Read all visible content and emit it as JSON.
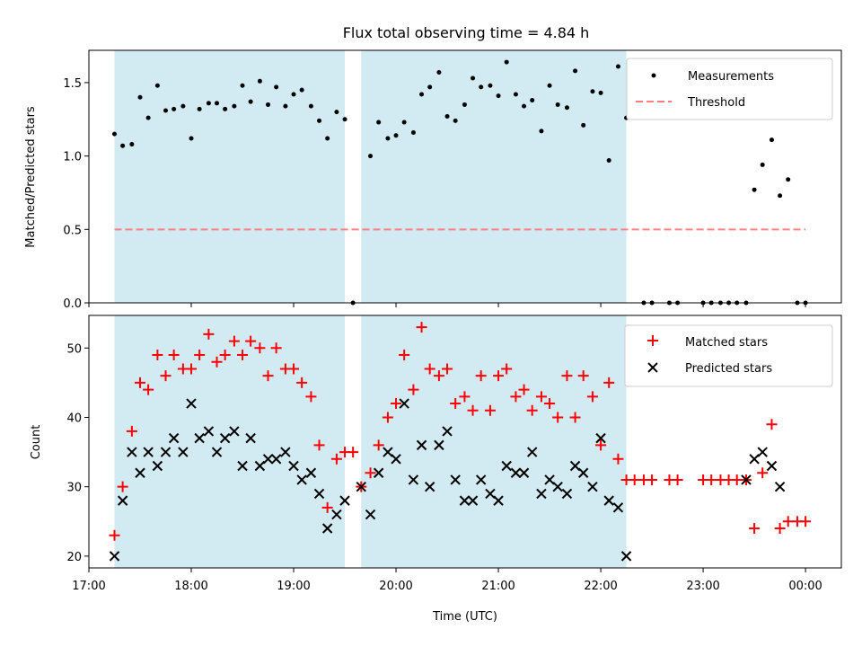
{
  "chart_data": [
    {
      "type": "scatter",
      "title": "Flux total observing time = 4.84 h",
      "xlabel": "",
      "ylabel": "Matched/Predicted stars",
      "xlim": [
        17.0,
        24.35
      ],
      "ylim": [
        0.0,
        1.72
      ],
      "yticks": [
        0.0,
        0.5,
        1.0,
        1.5
      ],
      "ytick_labels": [
        "0.0",
        "0.5",
        "1.0",
        "1.5"
      ],
      "shaded_spans": [
        [
          17.25,
          19.5
        ],
        [
          19.66,
          22.25
        ]
      ],
      "shade_color": "#add8e6",
      "series": [
        {
          "name": "Measurements",
          "marker": "dot",
          "color": "#000000",
          "x": [
            17.25,
            17.33,
            17.42,
            17.5,
            17.58,
            17.67,
            17.75,
            17.83,
            17.92,
            18.0,
            18.08,
            18.17,
            18.25,
            18.33,
            18.42,
            18.5,
            18.58,
            18.67,
            18.75,
            18.83,
            18.92,
            19.0,
            19.08,
            19.17,
            19.25,
            19.33,
            19.42,
            19.5,
            19.58,
            19.75,
            19.83,
            19.92,
            20.0,
            20.08,
            20.17,
            20.25,
            20.33,
            20.42,
            20.5,
            20.58,
            20.67,
            20.75,
            20.83,
            20.92,
            21.0,
            21.08,
            21.17,
            21.25,
            21.33,
            21.42,
            21.5,
            21.58,
            21.67,
            21.75,
            21.83,
            21.92,
            22.0,
            22.08,
            22.17,
            22.25,
            22.33,
            22.42,
            22.5,
            22.67,
            22.75,
            23.0,
            23.08,
            23.17,
            23.25,
            23.33,
            23.42,
            23.5,
            23.58,
            23.67,
            23.75,
            23.83,
            23.92,
            24.0
          ],
          "y": [
            1.15,
            1.07,
            1.08,
            1.4,
            1.26,
            1.48,
            1.31,
            1.32,
            1.34,
            1.12,
            1.32,
            1.36,
            1.36,
            1.32,
            1.34,
            1.48,
            1.37,
            1.51,
            1.35,
            1.47,
            1.34,
            1.42,
            1.45,
            1.34,
            1.24,
            1.12,
            1.3,
            1.25,
            0.0,
            1.0,
            1.23,
            1.12,
            1.14,
            1.23,
            1.16,
            1.42,
            1.47,
            1.57,
            1.27,
            1.24,
            1.35,
            1.53,
            1.47,
            1.48,
            1.41,
            1.64,
            1.42,
            1.34,
            1.38,
            1.17,
            1.48,
            1.35,
            1.33,
            1.58,
            1.21,
            1.44,
            1.43,
            0.97,
            1.61,
            1.26,
            1.55,
            0.0,
            0.0,
            0.0,
            0.0,
            0.0,
            0.0,
            0.0,
            0.0,
            0.0,
            0.0,
            0.77,
            0.94,
            1.11,
            0.73,
            0.84,
            0.0,
            0.0
          ]
        },
        {
          "name": "Threshold",
          "style": "dashed",
          "color": "#ff7f7f",
          "x": [
            17.25,
            24.0
          ],
          "y": [
            0.5,
            0.5
          ]
        }
      ],
      "legend": [
        "Measurements",
        "Threshold"
      ],
      "legend_position": "top-right"
    },
    {
      "type": "scatter",
      "title": "",
      "xlabel": "Time (UTC)",
      "ylabel": "Count",
      "xlim": [
        17.0,
        24.35
      ],
      "ylim": [
        18.3,
        54.7
      ],
      "xticks": [
        17.0,
        18.0,
        19.0,
        20.0,
        21.0,
        22.0,
        23.0,
        24.0
      ],
      "xtick_labels": [
        "17:00",
        "18:00",
        "19:00",
        "20:00",
        "21:00",
        "22:00",
        "23:00",
        "00:00"
      ],
      "yticks": [
        20,
        30,
        40,
        50
      ],
      "ytick_labels": [
        "20",
        "30",
        "40",
        "50"
      ],
      "shaded_spans": [
        [
          17.25,
          19.5
        ],
        [
          19.66,
          22.25
        ]
      ],
      "shade_color": "#add8e6",
      "series": [
        {
          "name": "Matched stars",
          "marker": "plus",
          "color": "#ff0000",
          "x": [
            17.25,
            17.33,
            17.42,
            17.5,
            17.58,
            17.67,
            17.75,
            17.83,
            17.92,
            18.0,
            18.08,
            18.17,
            18.25,
            18.33,
            18.42,
            18.5,
            18.58,
            18.67,
            18.75,
            18.83,
            18.92,
            19.0,
            19.08,
            19.17,
            19.25,
            19.33,
            19.42,
            19.5,
            19.58,
            19.66,
            19.75,
            19.83,
            19.92,
            20.0,
            20.08,
            20.17,
            20.25,
            20.33,
            20.42,
            20.5,
            20.58,
            20.67,
            20.75,
            20.83,
            20.92,
            21.0,
            21.08,
            21.17,
            21.25,
            21.33,
            21.42,
            21.5,
            21.58,
            21.67,
            21.75,
            21.83,
            21.92,
            22.0,
            22.08,
            22.17,
            22.25,
            22.33,
            22.42,
            22.5,
            22.67,
            22.75,
            23.0,
            23.08,
            23.17,
            23.25,
            23.33,
            23.42,
            23.5,
            23.58,
            23.67,
            23.75,
            23.83,
            23.92,
            24.0
          ],
          "y": [
            23,
            30,
            38,
            45,
            44,
            49,
            46,
            49,
            47,
            47,
            49,
            52,
            48,
            49,
            51,
            49,
            51,
            50,
            46,
            50,
            47,
            47,
            45,
            43,
            36,
            27,
            34,
            35,
            35,
            30,
            32,
            36,
            40,
            42,
            49,
            44,
            53,
            47,
            46,
            47,
            42,
            43,
            41,
            46,
            41,
            46,
            47,
            43,
            44,
            41,
            43,
            42,
            40,
            46,
            40,
            46,
            43,
            36,
            45,
            34,
            31,
            31,
            31,
            31,
            31,
            31,
            31,
            31,
            31,
            31,
            31,
            31,
            24,
            32,
            39,
            24,
            25,
            25,
            25
          ]
        },
        {
          "name": "Predicted stars",
          "marker": "x",
          "color": "#000000",
          "x": [
            17.25,
            17.33,
            17.42,
            17.5,
            17.58,
            17.67,
            17.75,
            17.83,
            17.92,
            18.0,
            18.08,
            18.17,
            18.25,
            18.33,
            18.42,
            18.5,
            18.58,
            18.67,
            18.75,
            18.83,
            18.92,
            19.0,
            19.08,
            19.17,
            19.25,
            19.33,
            19.42,
            19.5,
            19.66,
            19.75,
            19.83,
            19.92,
            20.0,
            20.08,
            20.17,
            20.25,
            20.33,
            20.42,
            20.5,
            20.58,
            20.67,
            20.75,
            20.83,
            20.92,
            21.0,
            21.08,
            21.17,
            21.25,
            21.33,
            21.42,
            21.5,
            21.58,
            21.67,
            21.75,
            21.83,
            21.92,
            22.0,
            22.08,
            22.17,
            22.25,
            23.42,
            23.5,
            23.58,
            23.67,
            23.75
          ],
          "y": [
            20,
            28,
            35,
            32,
            35,
            33,
            35,
            37,
            35,
            42,
            37,
            38,
            35,
            37,
            38,
            33,
            37,
            33,
            34,
            34,
            35,
            33,
            31,
            32,
            29,
            24,
            26,
            28,
            30,
            26,
            32,
            35,
            34,
            42,
            31,
            36,
            30,
            36,
            38,
            31,
            28,
            28,
            31,
            29,
            28,
            33,
            32,
            32,
            35,
            29,
            31,
            30,
            29,
            33,
            32,
            30,
            37,
            28,
            27,
            20,
            31,
            34,
            35,
            33,
            30
          ]
        }
      ],
      "legend": [
        "Matched stars",
        "Predicted stars"
      ],
      "legend_position": "top-right"
    }
  ]
}
